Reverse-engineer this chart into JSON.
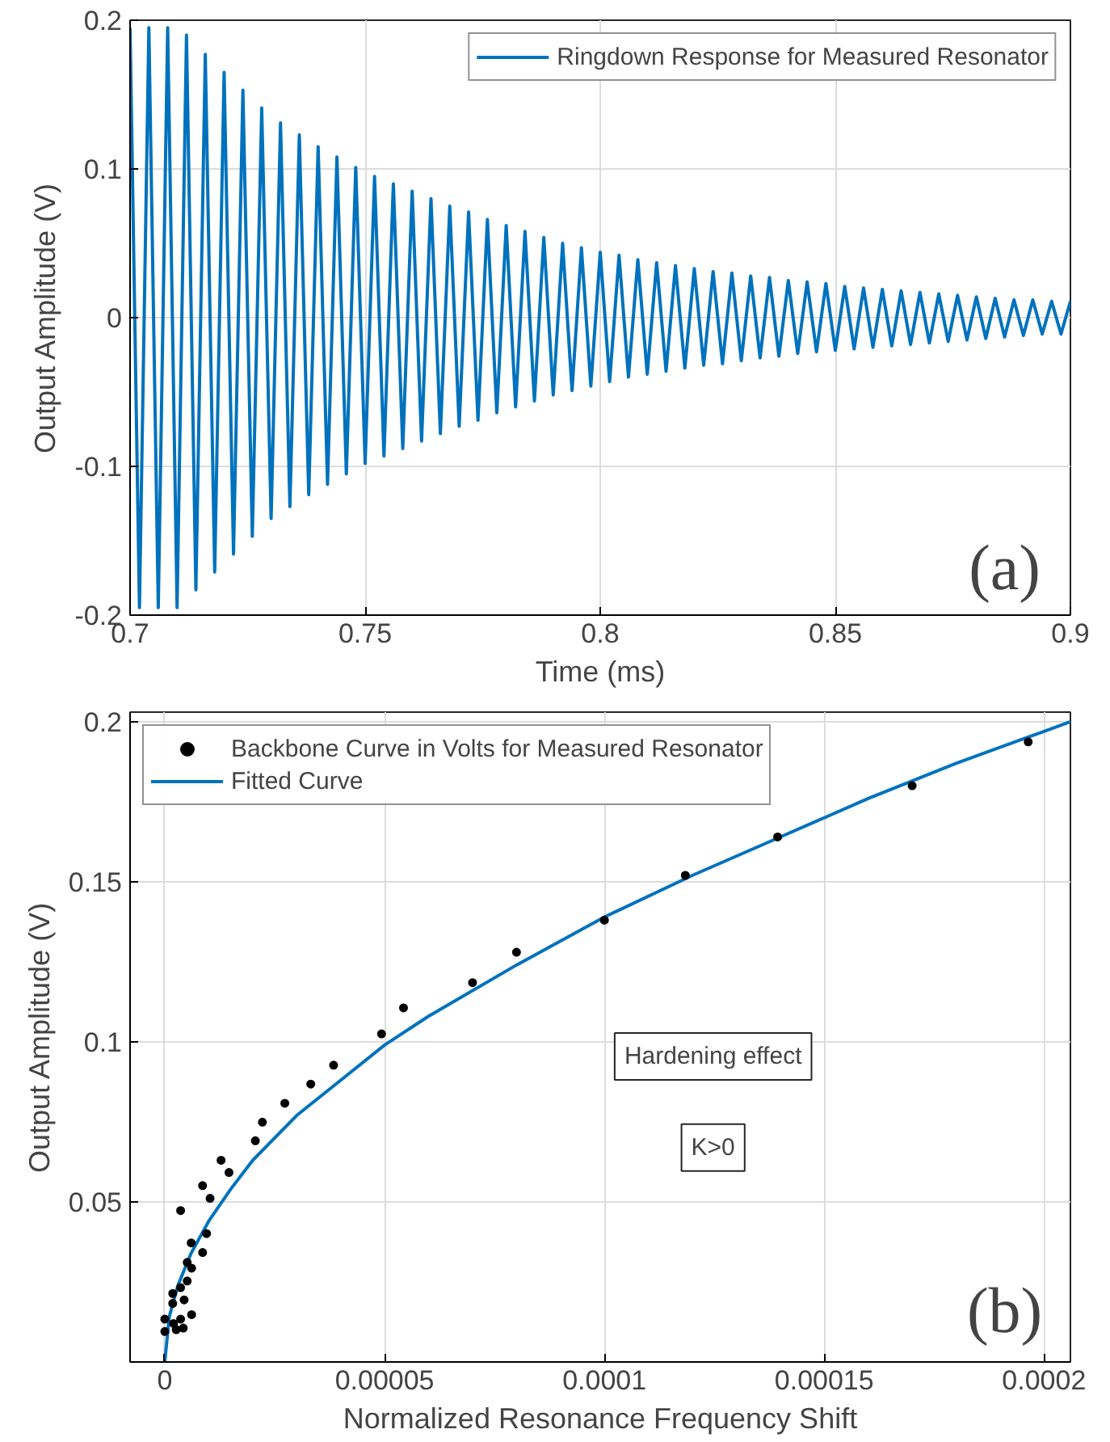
{
  "chart_data": [
    {
      "type": "line",
      "xlabel": "Time (ms)",
      "ylabel": "Output Amplitude (V)",
      "xlim": [
        0.7,
        0.9
      ],
      "ylim": [
        -0.2,
        0.2
      ],
      "xticks": [
        0.7,
        0.75,
        0.8,
        0.85,
        0.9
      ],
      "yticks": [
        -0.2,
        -0.1,
        0,
        0.1,
        0.2
      ],
      "grid": true,
      "legend": "top right",
      "marker": "none",
      "line_style": "solid",
      "annotations": [
        "(a)"
      ],
      "series": [
        {
          "name": "Ringdown Response for Measured Resonator",
          "color": "#0072bd",
          "x": [
            0.7,
            0.702,
            0.704,
            0.706,
            0.708,
            0.71,
            0.712,
            0.714,
            0.716,
            0.718,
            0.72,
            0.722,
            0.724,
            0.726,
            0.728,
            0.73,
            0.732,
            0.734,
            0.736,
            0.738,
            0.74,
            0.742,
            0.744,
            0.746,
            0.748,
            0.75,
            0.752,
            0.754,
            0.756,
            0.758,
            0.76,
            0.762,
            0.764,
            0.766,
            0.768,
            0.77,
            0.772,
            0.774,
            0.776,
            0.778,
            0.78,
            0.782,
            0.784,
            0.786,
            0.788,
            0.79,
            0.792,
            0.794,
            0.796,
            0.798,
            0.8,
            0.802,
            0.804,
            0.806,
            0.808,
            0.81,
            0.812,
            0.814,
            0.816,
            0.818,
            0.82,
            0.822,
            0.824,
            0.826,
            0.828,
            0.83,
            0.832,
            0.834,
            0.836,
            0.838,
            0.84,
            0.842,
            0.844,
            0.846,
            0.848,
            0.85,
            0.852,
            0.854,
            0.856,
            0.858,
            0.86,
            0.862,
            0.864,
            0.866,
            0.868,
            0.87,
            0.872,
            0.874,
            0.876,
            0.878,
            0.88,
            0.882,
            0.884,
            0.886,
            0.888,
            0.89,
            0.892,
            0.894,
            0.896,
            0.898,
            0.9
          ],
          "values": [
            0.195,
            -0.195,
            0.195,
            -0.195,
            0.195,
            -0.195,
            0.19,
            -0.183,
            0.177,
            -0.171,
            0.165,
            -0.159,
            0.153,
            -0.147,
            0.141,
            -0.135,
            0.131,
            -0.127,
            0.123,
            -0.119,
            0.115,
            -0.112,
            0.108,
            -0.105,
            0.101,
            -0.098,
            0.095,
            -0.093,
            0.09,
            -0.088,
            0.085,
            -0.083,
            0.08,
            -0.078,
            0.075,
            -0.073,
            0.071,
            -0.069,
            0.066,
            -0.064,
            0.062,
            -0.06,
            0.058,
            -0.056,
            0.054,
            -0.052,
            0.05,
            -0.049,
            0.047,
            -0.046,
            0.044,
            -0.043,
            0.042,
            -0.04,
            0.039,
            -0.038,
            0.037,
            -0.036,
            0.035,
            -0.034,
            0.033,
            -0.032,
            0.031,
            -0.031,
            0.03,
            -0.029,
            0.028,
            -0.027,
            0.027,
            -0.026,
            0.025,
            -0.024,
            0.024,
            -0.023,
            0.023,
            -0.022,
            0.021,
            -0.021,
            0.02,
            -0.02,
            0.019,
            -0.019,
            0.018,
            -0.018,
            0.017,
            -0.017,
            0.016,
            -0.016,
            0.015,
            -0.015,
            0.014,
            -0.014,
            0.013,
            -0.013,
            0.012,
            -0.012,
            0.012,
            -0.011,
            0.011,
            -0.011,
            0.011
          ]
        }
      ]
    },
    {
      "type": "scatter",
      "xlabel": "Normalized Resonance Frequency Shift",
      "ylabel": "Output Amplitude (V)",
      "xlim": [
        -7.9e-06,
        0.000206
      ],
      "ylim": [
        0,
        0.203
      ],
      "xticks": [
        {
          "value": 0,
          "label": "0"
        },
        {
          "value": 5e-05,
          "label": "0.00005"
        },
        {
          "value": 0.0001,
          "label": "0.0001"
        },
        {
          "value": 0.00015,
          "label": "0.00015"
        },
        {
          "value": 0.0002,
          "label": "0.0002"
        }
      ],
      "yticks": [
        0.05,
        0.1,
        0.15,
        0.2
      ],
      "grid": true,
      "legend": "top left",
      "annotations": [
        "(b)",
        "Hardening effect",
        "K>0"
      ],
      "series": [
        {
          "name": "Backbone Curve in Volts for Measured Resonator",
          "color": "#000000",
          "type": "scatter",
          "marker": "circle",
          "x": [
            0.0001,
            8e-05,
            7e-05,
            5.43e-05,
            4.93e-05,
            3.84e-05,
            3.32e-05,
            2.73e-05,
            2.22e-05,
            2.06e-05,
            1.28e-05,
            1.46e-05,
            8.6e-06,
            1.03e-05,
            3.6e-06,
            9.5e-06,
            6e-06,
            8.6e-06,
            5.1e-06,
            6.1e-06,
            5.1e-06,
            3.6e-06,
            1.8e-06,
            4.4e-06,
            1.8e-06,
            0,
            3.6e-06,
            6.1e-06,
            2e-06,
            4.2e-06,
            2.6e-06,
            0,
            0.0001184,
            0.0001394,
            0.00017,
            0.0001964
          ],
          "values": [
            0.138,
            0.128,
            0.1185,
            0.1106,
            0.1025,
            0.0927,
            0.0868,
            0.0808,
            0.0749,
            0.0691,
            0.063,
            0.0592,
            0.0551,
            0.0511,
            0.0473,
            0.0401,
            0.0372,
            0.0342,
            0.0311,
            0.0293,
            0.0253,
            0.0232,
            0.0214,
            0.0194,
            0.0183,
            0.0134,
            0.0134,
            0.0148,
            0.012,
            0.0106,
            0.0101,
            0.0095,
            0.152,
            0.164,
            0.18,
            0.1937
          ]
        },
        {
          "name": "Fitted Curve",
          "color": "#0072bd",
          "type": "line",
          "marker": "none",
          "line_style": "solid",
          "x": [
            0,
            1e-06,
            3e-06,
            6e-06,
            1e-05,
            1.5e-05,
            2e-05,
            3e-05,
            4e-05,
            5e-05,
            6e-05,
            8e-05,
            0.0001,
            0.00012,
            0.00014,
            0.00016,
            0.00018,
            0.0002,
            0.000206
          ],
          "values": [
            0,
            0.014,
            0.024,
            0.034,
            0.044,
            0.054,
            0.063,
            0.077,
            0.088,
            0.099,
            0.108,
            0.124,
            0.139,
            0.152,
            0.164,
            0.176,
            0.187,
            0.197,
            0.2
          ]
        }
      ]
    }
  ]
}
